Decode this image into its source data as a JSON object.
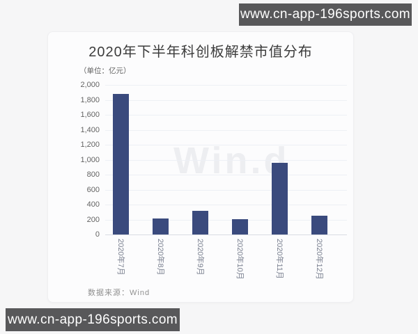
{
  "banners": {
    "top_text": "www.cn-app-196sports.com",
    "bottom_text": "www.cn-app-196sports.com"
  },
  "chart": {
    "title": "2020年下半年科创板解禁市值分布",
    "unit_label": "（单位：亿元）",
    "source_label": "数据来源：Wind",
    "watermark": "Win.d",
    "colors": {
      "bar": "#3a4a7d",
      "banner_background": "#58585a",
      "gridline": "#edf0f5"
    }
  },
  "chart_data": {
    "type": "bar",
    "title": "2020年下半年科创板解禁市值分布",
    "unit": "亿元",
    "categories": [
      "2020年7月",
      "2020年8月",
      "2020年9月",
      "2020年10月",
      "2020年11月",
      "2020年12月"
    ],
    "values": [
      1880,
      215,
      320,
      205,
      960,
      250
    ],
    "ylim": [
      0,
      2000
    ],
    "ytick_step": 200,
    "ytick_labels": [
      "0",
      "200",
      "400",
      "600",
      "800",
      "1,000",
      "1,200",
      "1,400",
      "1,600",
      "1,800",
      "2,000"
    ],
    "grid": true,
    "legend": null,
    "source": "数据来源：Wind",
    "background_watermark": "Win.d"
  }
}
